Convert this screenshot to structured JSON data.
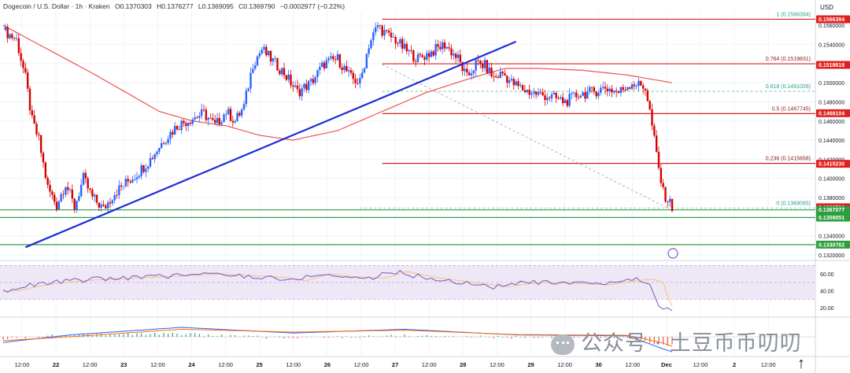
{
  "header": {
    "symbol": "Dogecoin / U.S. Dollar · 1h · Kraken",
    "open": "O0.1370303",
    "high": "H0.1376277",
    "low": "L0.1369095",
    "close": "C0.1369790",
    "change": "−0.0002977 (−0.22%)"
  },
  "watermark": {
    "text": "公众号 · 土豆币币叨叨",
    "icon": "wechat-icon"
  },
  "scroll_icon": "↑",
  "colors": {
    "up": "#2962ff",
    "down": "#d50000",
    "ma": "#f05252",
    "trend": "#1c2fd6",
    "fib": "#e02020",
    "support": "#2e9e3e",
    "rsi": "#7e57c2",
    "rsi_band": "#ede7f6"
  },
  "chart_data": [
    {
      "type": "candlestick",
      "title": "Dogecoin / U.S. Dollar · 1h · Kraken",
      "currency": "USD",
      "ylim": [
        0.1315,
        0.1575
      ],
      "y_ticks": [
        "0.1320000",
        "0.1340000",
        "0.1360000",
        "0.1380000",
        "0.1400000",
        "0.1420000",
        "0.1440000",
        "0.1460000",
        "0.1480000",
        "0.1500000",
        "0.1520000",
        "0.1540000",
        "0.1560000"
      ],
      "x_ticks": [
        "12:00",
        "22",
        "12:00",
        "23",
        "12:00",
        "24",
        "12:00",
        "25",
        "12:00",
        "26",
        "12:00",
        "27",
        "12:00",
        "28",
        "12:00",
        "29",
        "12:00",
        "30",
        "12:00",
        "Dec",
        "12:00",
        "2",
        "12:00"
      ],
      "close_path": [
        [
          0,
          0.1555
        ],
        [
          6,
          0.1545
        ],
        [
          10,
          0.1505
        ],
        [
          13,
          0.146
        ],
        [
          16,
          0.144
        ],
        [
          20,
          0.139
        ],
        [
          24,
          0.1372
        ],
        [
          28,
          0.1395
        ],
        [
          32,
          0.137
        ],
        [
          36,
          0.14
        ],
        [
          40,
          0.138
        ],
        [
          45,
          0.1368
        ],
        [
          50,
          0.1385
        ],
        [
          55,
          0.1395
        ],
        [
          60,
          0.1405
        ],
        [
          66,
          0.142
        ],
        [
          72,
          0.144
        ],
        [
          78,
          0.1455
        ],
        [
          84,
          0.1462
        ],
        [
          90,
          0.1468
        ],
        [
          95,
          0.1455
        ],
        [
          100,
          0.147
        ],
        [
          104,
          0.146
        ],
        [
          108,
          0.1475
        ],
        [
          112,
          0.152
        ],
        [
          116,
          0.1535
        ],
        [
          120,
          0.1525
        ],
        [
          126,
          0.151
        ],
        [
          132,
          0.149
        ],
        [
          138,
          0.15
        ],
        [
          144,
          0.152
        ],
        [
          150,
          0.1525
        ],
        [
          156,
          0.1505
        ],
        [
          160,
          0.15
        ],
        [
          164,
          0.154
        ],
        [
          168,
          0.156
        ],
        [
          172,
          0.155
        ],
        [
          176,
          0.1545
        ],
        [
          180,
          0.1535
        ],
        [
          186,
          0.1525
        ],
        [
          192,
          0.1532
        ],
        [
          198,
          0.154
        ],
        [
          204,
          0.1525
        ],
        [
          208,
          0.1505
        ],
        [
          212,
          0.152
        ],
        [
          216,
          0.1518
        ],
        [
          220,
          0.1505
        ],
        [
          224,
          0.151
        ],
        [
          228,
          0.15
        ],
        [
          234,
          0.1492
        ],
        [
          240,
          0.1488
        ],
        [
          246,
          0.1485
        ],
        [
          252,
          0.148
        ],
        [
          258,
          0.1488
        ],
        [
          264,
          0.149
        ],
        [
          270,
          0.1495
        ],
        [
          276,
          0.149
        ],
        [
          282,
          0.15
        ],
        [
          288,
          0.1495
        ],
        [
          290,
          0.147
        ],
        [
          292,
          0.144
        ],
        [
          294,
          0.141
        ],
        [
          296,
          0.1385
        ],
        [
          298,
          0.1378
        ],
        [
          300,
          0.137
        ]
      ],
      "ma_path": [
        [
          0,
          0.156
        ],
        [
          20,
          0.1535
        ],
        [
          40,
          0.151
        ],
        [
          55,
          0.149
        ],
        [
          70,
          0.147
        ],
        [
          85,
          0.146
        ],
        [
          100,
          0.1455
        ],
        [
          115,
          0.1445
        ],
        [
          130,
          0.144
        ],
        [
          150,
          0.145
        ],
        [
          170,
          0.147
        ],
        [
          190,
          0.149
        ],
        [
          210,
          0.1505
        ],
        [
          225,
          0.1515
        ],
        [
          240,
          0.1515
        ],
        [
          260,
          0.1513
        ],
        [
          280,
          0.1508
        ],
        [
          300,
          0.15
        ]
      ],
      "trendline": {
        "from": [
          10,
          0.1328
        ],
        "to": [
          230,
          0.1543
        ]
      },
      "fib_dotted": {
        "from": [
          170,
          0.1519
        ],
        "to": [
          298,
          0.1369
        ]
      },
      "fibonacci": [
        {
          "ratio": "1",
          "value": "0.1566394",
          "label": "1 (0.1566394)"
        },
        {
          "ratio": "0.764",
          "value": "0.1519831",
          "label": "0.764 (0.1519831)"
        },
        {
          "ratio": "0.618",
          "value": "0.1491026",
          "label": "0.618 (0.1491026)"
        },
        {
          "ratio": "0.5",
          "value": "0.1467745",
          "label": "0.5 (0.1467745)"
        },
        {
          "ratio": "0.236",
          "value": "0.1415658",
          "label": "0.236 (0.1415658)"
        },
        {
          "ratio": "0",
          "value": "0.1369095",
          "label": "0 (0.1369095)"
        }
      ],
      "price_tags": [
        {
          "value": 0.1566394,
          "label": "0.1566394",
          "kind": "fib"
        },
        {
          "value": 0.1518618,
          "label": "0.1518618",
          "kind": "fib"
        },
        {
          "value": 0.1468104,
          "label": "0.1468104",
          "kind": "fib"
        },
        {
          "value": 0.141523,
          "label": "0.1415230",
          "kind": "fib"
        },
        {
          "value": 0.136979,
          "label": "0.1369790",
          "sub": "02:48",
          "kind": "last"
        },
        {
          "value": 0.1367077,
          "label": "0.1367077",
          "kind": "support"
        },
        {
          "value": 0.1359051,
          "label": "0.1359051",
          "kind": "support"
        },
        {
          "value": 0.1330762,
          "label": "0.1330762",
          "kind": "support"
        }
      ]
    },
    {
      "type": "line",
      "name": "RSI",
      "ylim": [
        10,
        75
      ],
      "y_ticks": [
        "60.00",
        "40.00",
        "20.00"
      ],
      "band": [
        30,
        70
      ],
      "series_path": [
        [
          0,
          40
        ],
        [
          15,
          48
        ],
        [
          30,
          52
        ],
        [
          50,
          55
        ],
        [
          70,
          57
        ],
        [
          90,
          60
        ],
        [
          105,
          58
        ],
        [
          120,
          56
        ],
        [
          130,
          52
        ],
        [
          140,
          60
        ],
        [
          150,
          57
        ],
        [
          165,
          55
        ],
        [
          175,
          63
        ],
        [
          190,
          55
        ],
        [
          205,
          50
        ],
        [
          220,
          45
        ],
        [
          235,
          50
        ],
        [
          250,
          49
        ],
        [
          265,
          47
        ],
        [
          275,
          51
        ],
        [
          285,
          54
        ],
        [
          290,
          50
        ],
        [
          293,
          25
        ],
        [
          296,
          18
        ],
        [
          300,
          17
        ]
      ]
    },
    {
      "type": "line",
      "name": "MACD",
      "ylim": [
        -1,
        1
      ],
      "y_ticks": [],
      "macd_path": [
        [
          0,
          -0.3
        ],
        [
          30,
          0.1
        ],
        [
          80,
          0.5
        ],
        [
          130,
          0.2
        ],
        [
          180,
          0.4
        ],
        [
          230,
          0.1
        ],
        [
          280,
          0.05
        ],
        [
          295,
          -0.6
        ],
        [
          300,
          -0.8
        ]
      ],
      "signal_path": [
        [
          0,
          -0.2
        ],
        [
          30,
          0.0
        ],
        [
          80,
          0.4
        ],
        [
          130,
          0.25
        ],
        [
          180,
          0.35
        ],
        [
          230,
          0.12
        ],
        [
          280,
          0.08
        ],
        [
          295,
          -0.3
        ],
        [
          300,
          -0.5
        ]
      ]
    }
  ]
}
